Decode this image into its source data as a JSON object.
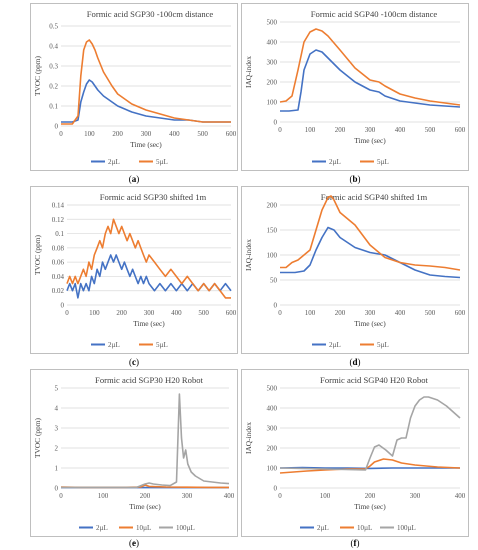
{
  "chart_data": [
    {
      "type": "line",
      "panel": "(a)",
      "title": "Formic acid SGP30 -100cm distance",
      "xlabel": "Time (sec)",
      "ylabel": "TVOC (ppm)",
      "xlim": [
        0,
        600
      ],
      "ylim": [
        0,
        0.5
      ],
      "xticks": [
        "0",
        "100",
        "200",
        "300",
        "400",
        "500",
        "600"
      ],
      "yticks": [
        "0",
        "0.1",
        "0.2",
        "0.3",
        "0.4",
        "0.5"
      ],
      "grid": "horizontal",
      "legend": "bottom",
      "series": [
        {
          "name": "2µL",
          "color": "#4472C4",
          "x": [
            0,
            20,
            40,
            60,
            70,
            80,
            90,
            100,
            110,
            120,
            130,
            150,
            180,
            200,
            250,
            300,
            350,
            400,
            450,
            500,
            550,
            600
          ],
          "y": [
            0.02,
            0.02,
            0.02,
            0.03,
            0.12,
            0.17,
            0.21,
            0.23,
            0.22,
            0.2,
            0.18,
            0.15,
            0.12,
            0.1,
            0.07,
            0.05,
            0.04,
            0.03,
            0.03,
            0.02,
            0.02,
            0.02
          ]
        },
        {
          "name": "5µL",
          "color": "#ED7D31",
          "x": [
            0,
            20,
            40,
            60,
            70,
            80,
            90,
            100,
            110,
            120,
            130,
            150,
            180,
            200,
            250,
            300,
            350,
            400,
            450,
            500,
            550,
            600
          ],
          "y": [
            0.01,
            0.01,
            0.01,
            0.05,
            0.25,
            0.38,
            0.42,
            0.43,
            0.41,
            0.38,
            0.34,
            0.27,
            0.2,
            0.16,
            0.11,
            0.08,
            0.06,
            0.04,
            0.03,
            0.02,
            0.02,
            0.02
          ]
        }
      ]
    },
    {
      "type": "line",
      "panel": "(b)",
      "title": "Formic acid SGP40 -100cm distance",
      "xlabel": "Time (sec)",
      "ylabel": "IAQ-index",
      "xlim": [
        0,
        600
      ],
      "ylim": [
        0,
        500
      ],
      "xticks": [
        "0",
        "100",
        "200",
        "300",
        "400",
        "500",
        "600"
      ],
      "yticks": [
        "0",
        "100",
        "200",
        "300",
        "400",
        "500"
      ],
      "grid": "horizontal",
      "legend": "bottom",
      "series": [
        {
          "name": "2µL",
          "color": "#4472C4",
          "x": [
            0,
            30,
            60,
            70,
            80,
            100,
            120,
            140,
            160,
            200,
            250,
            300,
            330,
            350,
            400,
            450,
            500,
            550,
            600
          ],
          "y": [
            55,
            55,
            60,
            150,
            260,
            340,
            360,
            350,
            320,
            260,
            200,
            160,
            150,
            130,
            105,
            95,
            85,
            80,
            75
          ]
        },
        {
          "name": "5µL",
          "color": "#ED7D31",
          "x": [
            0,
            20,
            40,
            60,
            80,
            100,
            120,
            140,
            160,
            200,
            250,
            300,
            330,
            350,
            400,
            450,
            500,
            550,
            600
          ],
          "y": [
            100,
            105,
            130,
            260,
            400,
            450,
            465,
            455,
            430,
            360,
            270,
            210,
            200,
            180,
            140,
            120,
            105,
            95,
            85
          ]
        }
      ]
    },
    {
      "type": "line",
      "panel": "(c)",
      "title": "Formic acid SGP30 shifted 1m",
      "xlabel": "Time (sec)",
      "ylabel": "TVOC (ppm)",
      "xlim": [
        0,
        600
      ],
      "ylim": [
        0,
        0.14
      ],
      "xticks": [
        "0",
        "100",
        "200",
        "300",
        "400",
        "500",
        "600"
      ],
      "yticks": [
        "0",
        "0.02",
        "0.04",
        "0.06",
        "0.08",
        "0.1",
        "0.12",
        "0.14"
      ],
      "grid": "horizontal",
      "legend": "bottom",
      "series": [
        {
          "name": "2µL",
          "color": "#4472C4",
          "x": [
            0,
            10,
            20,
            30,
            40,
            50,
            60,
            70,
            80,
            90,
            100,
            110,
            120,
            130,
            140,
            150,
            160,
            170,
            180,
            190,
            200,
            210,
            220,
            230,
            240,
            250,
            260,
            270,
            280,
            290,
            300,
            320,
            340,
            360,
            380,
            400,
            420,
            440,
            460,
            480,
            500,
            520,
            540,
            560,
            580,
            600
          ],
          "y": [
            0.02,
            0.03,
            0.02,
            0.03,
            0.01,
            0.03,
            0.02,
            0.03,
            0.02,
            0.04,
            0.03,
            0.05,
            0.04,
            0.06,
            0.05,
            0.06,
            0.07,
            0.06,
            0.07,
            0.06,
            0.05,
            0.06,
            0.05,
            0.04,
            0.05,
            0.04,
            0.03,
            0.04,
            0.03,
            0.04,
            0.03,
            0.02,
            0.03,
            0.02,
            0.03,
            0.02,
            0.03,
            0.02,
            0.03,
            0.02,
            0.03,
            0.02,
            0.03,
            0.02,
            0.03,
            0.02
          ]
        },
        {
          "name": "5µL",
          "color": "#ED7D31",
          "x": [
            0,
            10,
            20,
            30,
            40,
            50,
            60,
            70,
            80,
            90,
            100,
            110,
            120,
            130,
            140,
            150,
            160,
            170,
            180,
            190,
            200,
            210,
            220,
            230,
            240,
            250,
            260,
            270,
            280,
            290,
            300,
            320,
            340,
            360,
            380,
            400,
            420,
            440,
            460,
            480,
            500,
            520,
            540,
            560,
            580,
            600
          ],
          "y": [
            0.03,
            0.04,
            0.03,
            0.04,
            0.03,
            0.04,
            0.05,
            0.04,
            0.06,
            0.05,
            0.07,
            0.08,
            0.09,
            0.08,
            0.1,
            0.11,
            0.1,
            0.12,
            0.11,
            0.1,
            0.11,
            0.1,
            0.09,
            0.1,
            0.09,
            0.08,
            0.09,
            0.08,
            0.07,
            0.06,
            0.07,
            0.06,
            0.05,
            0.04,
            0.05,
            0.04,
            0.03,
            0.04,
            0.03,
            0.02,
            0.03,
            0.02,
            0.03,
            0.02,
            0.01,
            0.01
          ]
        }
      ]
    },
    {
      "type": "line",
      "panel": "(d)",
      "title": "Formic acid SGP40 shifted 1m",
      "xlabel": "Time (sec)",
      "ylabel": "IAQ-index",
      "xlim": [
        0,
        600
      ],
      "ylim": [
        0,
        200
      ],
      "xticks": [
        "0",
        "100",
        "200",
        "300",
        "400",
        "500",
        "600"
      ],
      "yticks": [
        "0",
        "50",
        "100",
        "150",
        "200"
      ],
      "grid": "horizontal",
      "legend": "bottom",
      "series": [
        {
          "name": "2µL",
          "color": "#4472C4",
          "x": [
            0,
            50,
            80,
            100,
            120,
            140,
            160,
            180,
            200,
            250,
            300,
            350,
            400,
            450,
            500,
            550,
            600
          ],
          "y": [
            65,
            65,
            68,
            80,
            110,
            135,
            155,
            150,
            135,
            115,
            105,
            100,
            85,
            70,
            60,
            57,
            55
          ]
        },
        {
          "name": "5µL",
          "color": "#ED7D31",
          "x": [
            0,
            20,
            40,
            60,
            80,
            100,
            120,
            140,
            160,
            170,
            180,
            200,
            250,
            300,
            350,
            400,
            450,
            500,
            550,
            600
          ],
          "y": [
            75,
            75,
            85,
            90,
            100,
            110,
            150,
            190,
            215,
            218,
            210,
            185,
            160,
            120,
            95,
            85,
            80,
            78,
            75,
            70
          ]
        }
      ]
    },
    {
      "type": "line",
      "panel": "(e)",
      "title": "Formic acid SGP30 H20 Robot",
      "xlabel": "Time (sec)",
      "ylabel": "TVOC (ppm)",
      "xlim": [
        0,
        400
      ],
      "ylim": [
        0,
        5
      ],
      "xticks": [
        "0",
        "100",
        "200",
        "300",
        "400"
      ],
      "yticks": [
        "0",
        "1",
        "2",
        "3",
        "4",
        "5"
      ],
      "grid": "horizontal",
      "legend": "bottom",
      "series": [
        {
          "name": "2µL",
          "color": "#4472C4",
          "x": [
            0,
            100,
            200,
            300,
            400
          ],
          "y": [
            0.02,
            0.02,
            0.02,
            0.02,
            0.02
          ]
        },
        {
          "name": "10µL",
          "color": "#ED7D31",
          "x": [
            0,
            50,
            100,
            150,
            190,
            200,
            210,
            250,
            300,
            350,
            400
          ],
          "y": [
            0.05,
            0.03,
            0.03,
            0.03,
            0.05,
            0.15,
            0.08,
            0.05,
            0.04,
            0.03,
            0.03
          ]
        },
        {
          "name": "100µL",
          "color": "#A5A5A5",
          "x": [
            0,
            100,
            180,
            200,
            210,
            220,
            240,
            260,
            275,
            282,
            287,
            292,
            297,
            302,
            310,
            320,
            340,
            360,
            380,
            400
          ],
          "y": [
            0.03,
            0.03,
            0.03,
            0.2,
            0.25,
            0.2,
            0.15,
            0.12,
            0.3,
            4.7,
            2.5,
            1.5,
            1.9,
            1.2,
            0.8,
            0.6,
            0.35,
            0.3,
            0.25,
            0.22
          ]
        }
      ]
    },
    {
      "type": "line",
      "panel": "(f)",
      "title": "Formic acid SGP40 H20 Robot",
      "xlabel": "Time (sec)",
      "ylabel": "IAQ-index",
      "xlim": [
        0,
        400
      ],
      "ylim": [
        0,
        500
      ],
      "xticks": [
        "0",
        "100",
        "200",
        "300",
        "400"
      ],
      "yticks": [
        "0",
        "100",
        "200",
        "300",
        "400",
        "500"
      ],
      "grid": "horizontal",
      "legend": "bottom",
      "series": [
        {
          "name": "2µL",
          "color": "#4472C4",
          "x": [
            0,
            50,
            100,
            150,
            200,
            250,
            300,
            350,
            400
          ],
          "y": [
            100,
            102,
            100,
            100,
            98,
            100,
            100,
            100,
            100
          ]
        },
        {
          "name": "10µL",
          "color": "#ED7D31",
          "x": [
            0,
            30,
            60,
            100,
            150,
            190,
            200,
            210,
            230,
            250,
            270,
            300,
            350,
            400
          ],
          "y": [
            75,
            80,
            85,
            90,
            95,
            95,
            110,
            130,
            145,
            140,
            125,
            115,
            105,
            100
          ]
        },
        {
          "name": "100µL",
          "color": "#A5A5A5",
          "x": [
            0,
            100,
            190,
            200,
            210,
            220,
            235,
            250,
            260,
            270,
            280,
            290,
            300,
            310,
            320,
            330,
            350,
            370,
            390,
            400
          ],
          "y": [
            100,
            95,
            90,
            150,
            205,
            215,
            190,
            160,
            240,
            250,
            250,
            350,
            410,
            440,
            455,
            455,
            440,
            410,
            370,
            350
          ]
        }
      ]
    }
  ]
}
